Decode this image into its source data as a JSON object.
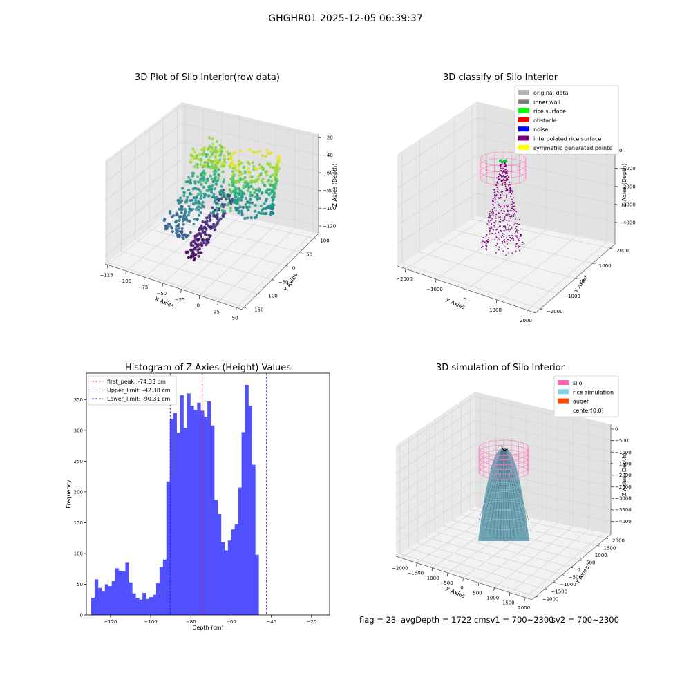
{
  "suptitle": "GHGHR01 2025-12-05 06:39:37",
  "footer": {
    "flag": "flag = 23",
    "avg": "avgDepth = 1722 cmsv1 = 700~2300",
    "sv2": "sv2 = 700~2300"
  },
  "colors": {
    "bar": "#4d4dff",
    "peak_line": "#e0202a",
    "limit_line": "#1a1ad6",
    "silo": "#ff69b4",
    "rice": "#87ceeb",
    "auger": "#ff4500",
    "pane_light": "#f2f2f2",
    "pane_mid": "#e9e9e9",
    "pane_dark": "#e2e2e2",
    "grid": "#d6d6d6"
  },
  "chart_data": [
    {
      "type": "scatter",
      "panel": "raw",
      "title": "3D Plot of Silo Interior(row data)",
      "xlabel": "X Axies",
      "ylabel": "Y Axies",
      "zlabel": "Z Axies (Depth)",
      "x_ticks": [
        "−125",
        "−100",
        "−75",
        "−50",
        "−25",
        "0",
        "25",
        "50"
      ],
      "y_ticks": [
        "−150",
        "−100",
        "−50",
        "0",
        "50",
        "100"
      ],
      "z_ticks": [
        "−120",
        "−100",
        "−80",
        "−60",
        "−40",
        "−20"
      ],
      "xlim": [
        -130,
        55
      ],
      "ylim": [
        -155,
        110
      ],
      "zlim": [
        -130,
        -15
      ],
      "colormap": "viridis"
    },
    {
      "type": "scatter",
      "panel": "classify",
      "title": "3D classify of Silo Interior",
      "xlabel": "X Axies",
      "ylabel": "Y Axies",
      "zlabel": "Z Axies (Depth)",
      "x_ticks": [
        "−2000",
        "−1000",
        "0",
        "1000",
        "2000"
      ],
      "y_ticks": [
        "−2000",
        "−1000",
        "0",
        "1000",
        "2000"
      ],
      "z_ticks": [
        "−4000",
        "−3000",
        "−2000",
        "−1000",
        "0"
      ],
      "legend": [
        {
          "label": "original data",
          "color": "#b3b3b3"
        },
        {
          "label": "inner wall",
          "color": "#808080"
        },
        {
          "label": "rice surface",
          "color": "#00ff00"
        },
        {
          "label": "obstacle",
          "color": "#ff0000"
        },
        {
          "label": "noise",
          "color": "#0000ff"
        },
        {
          "label": "interpolated rice surface",
          "color": "#800080"
        },
        {
          "label": "symmetric generated points",
          "color": "#ffff00"
        }
      ]
    },
    {
      "type": "bar",
      "panel": "histogram",
      "title": "Histogram of Z-Axies (Height) Values",
      "xlabel": "Depth (cm)",
      "ylabel": "Frequency",
      "xlim": [
        -132,
        -11
      ],
      "ylim": [
        0,
        393
      ],
      "x_ticks": [
        -120,
        -100,
        -80,
        -60,
        -40,
        -20
      ],
      "y_ticks": [
        0,
        50,
        100,
        150,
        200,
        250,
        300,
        350
      ],
      "bin_start": -129.6,
      "bin_width": 1.7,
      "values": [
        28,
        58,
        44,
        38,
        50,
        47,
        55,
        76,
        72,
        71,
        85,
        53,
        35,
        28,
        25,
        36,
        26,
        29,
        33,
        52,
        78,
        90,
        217,
        318,
        328,
        296,
        357,
        304,
        360,
        340,
        333,
        345,
        332,
        322,
        347,
        308,
        187,
        164,
        118,
        105,
        121,
        139,
        147,
        207,
        297,
        374,
        340,
        244,
        98
      ],
      "lines": [
        {
          "label": "first_peak: -74.33 cm",
          "x": -74.33,
          "style": "peak"
        },
        {
          "label": "Upper_limit: -42.38 cm",
          "x": -42.38,
          "style": "limit"
        },
        {
          "label": "Lower_limit: -90.31 cm",
          "x": -90.31,
          "style": "limit"
        }
      ]
    },
    {
      "type": "surface",
      "panel": "simulation",
      "title": "3D simulation of Silo Interior",
      "xlabel": "X Axies",
      "ylabel": "Y Axies",
      "zlabel": "Z Axies (Depth)",
      "x_ticks": [
        "−2000",
        "−1500",
        "−1000",
        "−500",
        "0",
        "500",
        "1000",
        "1500",
        "2000"
      ],
      "y_ticks": [
        "−2000",
        "−1500",
        "−1000",
        "−500",
        "0",
        "500",
        "1000",
        "1500",
        "2000"
      ],
      "z_ticks": [
        "−4000",
        "−3500",
        "−3000",
        "−2500",
        "−2000",
        "−1500",
        "−1000",
        "−500",
        "0"
      ],
      "legend": [
        {
          "label": "silo",
          "color": "#ff69b4"
        },
        {
          "label": "rice simulation",
          "color": "#87ceeb"
        },
        {
          "label": "auger",
          "color": "#ff4500"
        },
        {
          "label": "center(0,0)",
          "color": null
        }
      ]
    }
  ]
}
